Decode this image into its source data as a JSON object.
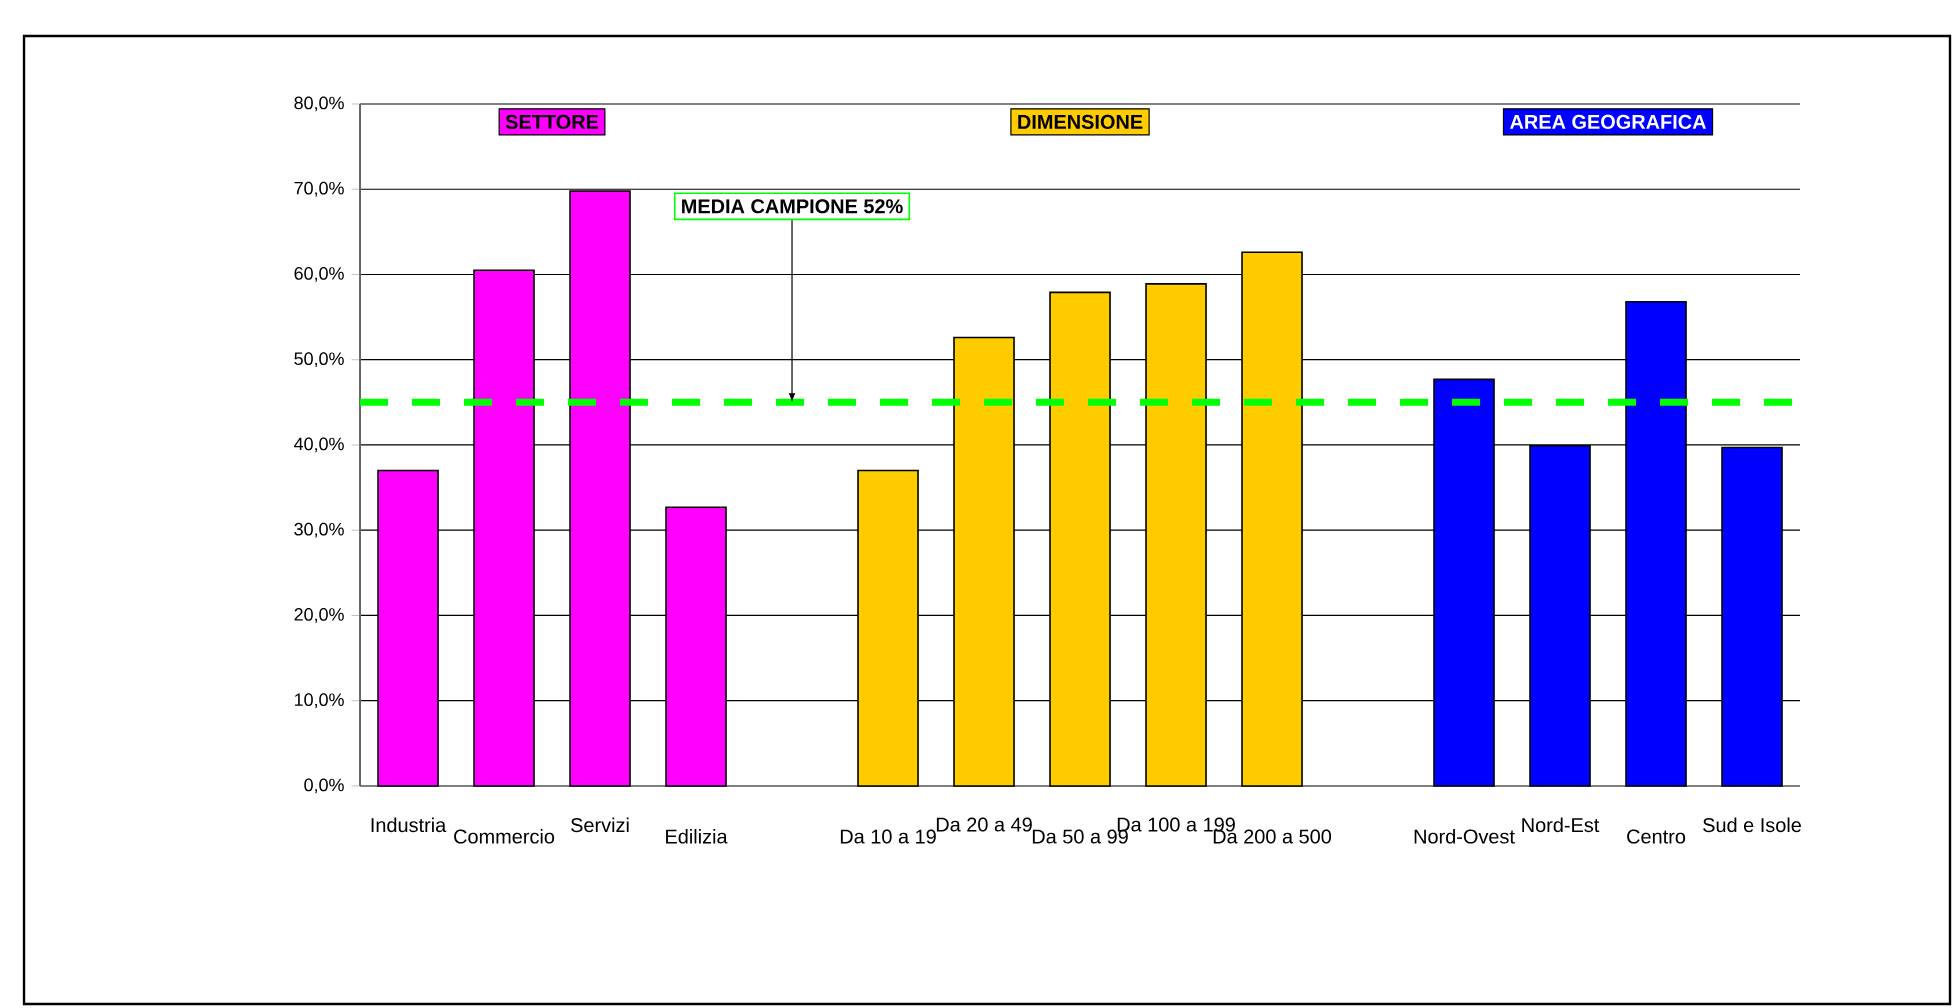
{
  "chart_data": {
    "type": "bar",
    "categories": [
      "Industria",
      "Commercio",
      "Servizi",
      "Edilizia",
      null,
      "Da 10 a 19",
      "Da 20 a 49",
      "Da 50 a 99",
      "Da 100 a 199",
      "Da 200 a 500",
      null,
      "Nord-Ovest",
      "Nord-Est",
      "Centro",
      "Sud e Isole"
    ],
    "series": [
      {
        "name": "SETTORE",
        "color": "#ff00ff",
        "values": [
          37.0,
          60.5,
          69.8,
          32.7,
          null,
          null,
          null,
          null,
          null,
          null,
          null,
          null,
          null,
          null,
          null
        ]
      },
      {
        "name": "DIMENSIONE",
        "color": "#ffcc00",
        "values": [
          null,
          null,
          null,
          null,
          null,
          37.0,
          52.6,
          57.9,
          58.9,
          62.6,
          null,
          null,
          null,
          null,
          null
        ]
      },
      {
        "name": "AREA GEOGRAFICA",
        "color": "#0000ff",
        "values": [
          null,
          null,
          null,
          null,
          null,
          null,
          null,
          null,
          null,
          null,
          null,
          47.7,
          39.9,
          56.8,
          39.7
        ]
      }
    ],
    "ylim": [
      0,
      80
    ],
    "yticks": [
      {
        "value": 0,
        "label": "0,0%"
      },
      {
        "value": 10,
        "label": "10,0%"
      },
      {
        "value": 20,
        "label": "20,0%"
      },
      {
        "value": 30,
        "label": "30,0%"
      },
      {
        "value": 40,
        "label": "40,0%"
      },
      {
        "value": 50,
        "label": "50,0%"
      },
      {
        "value": 60,
        "label": "60,0%"
      },
      {
        "value": 70,
        "label": "70,0%"
      },
      {
        "value": 80,
        "label": "80,0%"
      }
    ],
    "ref_lines": [
      {
        "axis": "y",
        "value": 45,
        "label": "MEDIA CAMPIONE 52%",
        "color": "#00ff00",
        "line_style": "dashed"
      }
    ],
    "grid": "y",
    "legend": "top"
  }
}
